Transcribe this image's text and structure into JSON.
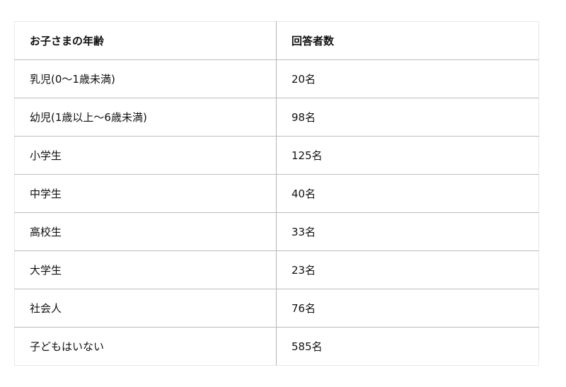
{
  "table": {
    "headers": [
      "お子さまの年齢",
      "回答者数"
    ],
    "rows": [
      [
        "乳児(0～1歳未満)",
        "20名"
      ],
      [
        "幼児(1歳以上～6歳未満)",
        "98名"
      ],
      [
        "小学生",
        "125名"
      ],
      [
        "中学生",
        "40名"
      ],
      [
        "高校生",
        "33名"
      ],
      [
        "大学生",
        "23名"
      ],
      [
        "社会人",
        "76名"
      ],
      [
        "子どもはいない",
        "585名"
      ]
    ]
  }
}
